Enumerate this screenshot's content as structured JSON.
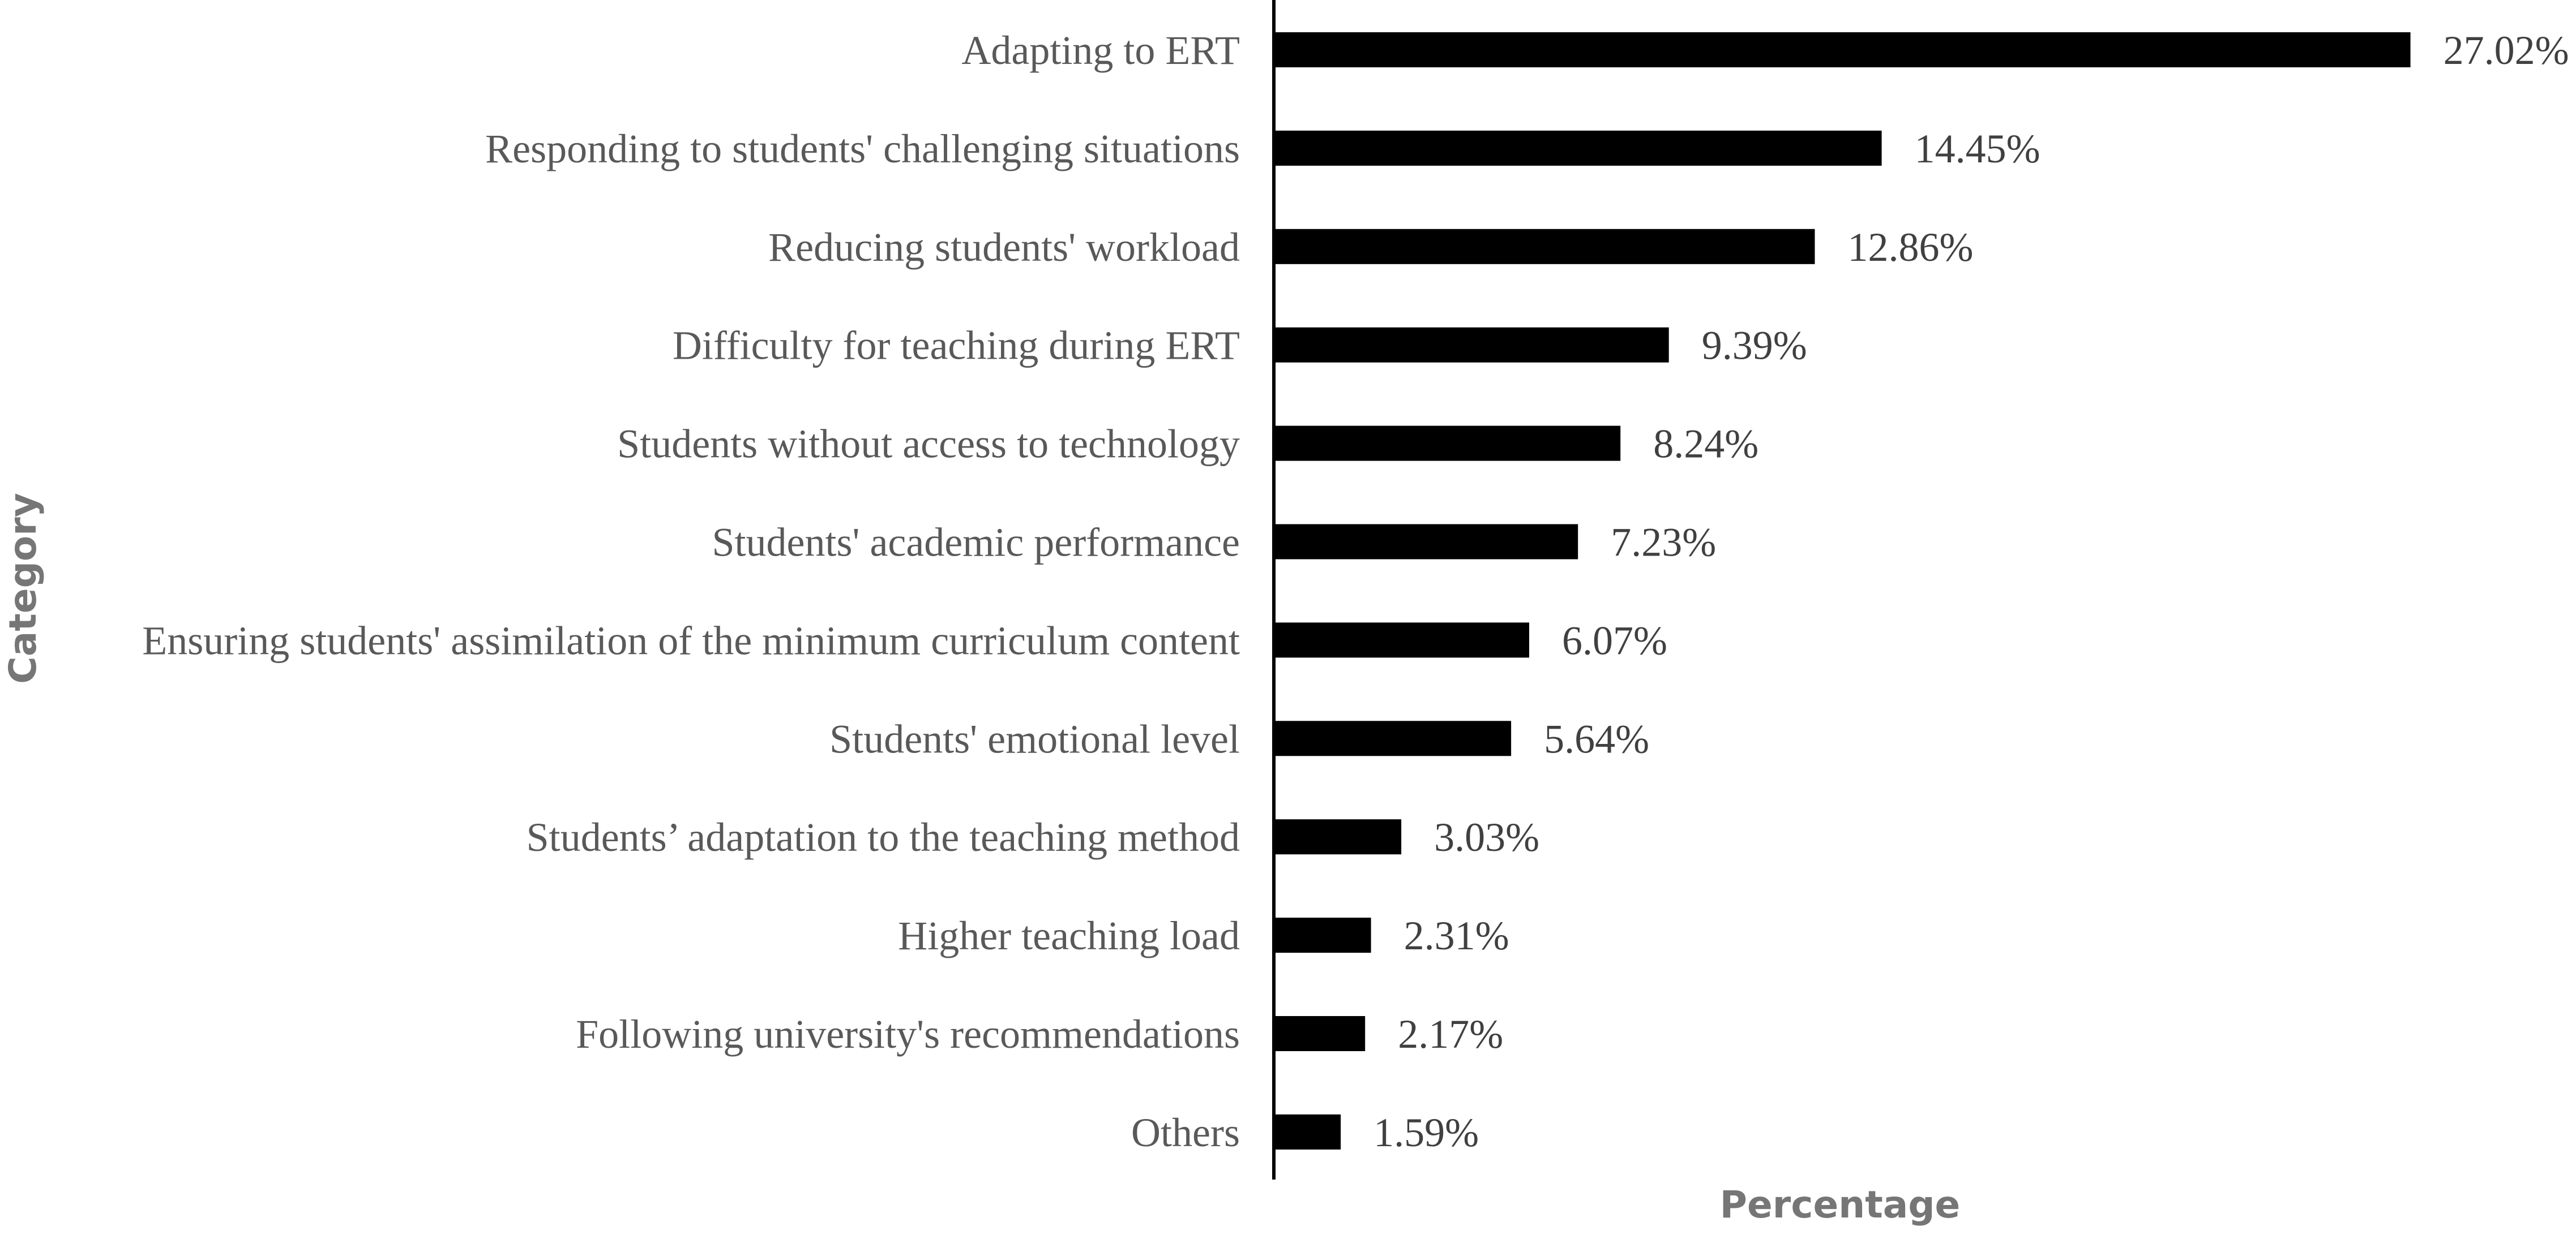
{
  "chart_data": {
    "type": "bar",
    "orientation": "horizontal",
    "xlabel": "Percentage",
    "ylabel": "Category",
    "categories": [
      "Adapting to ERT",
      "Responding to students' challenging situations",
      "Reducing students' workload",
      "Difficulty for teaching during ERT",
      "Students without access to technology",
      "Students' academic performance",
      "Ensuring students' assimilation of the minimum curriculum content",
      "Students' emotional level",
      "Students’ adaptation to the teaching method",
      "Higher teaching load",
      "Following university's recommendations",
      "Others"
    ],
    "values": [
      27.02,
      14.45,
      12.86,
      9.39,
      8.24,
      7.23,
      6.07,
      5.64,
      3.03,
      2.31,
      2.17,
      1.59
    ],
    "value_labels": [
      "27.02%",
      "14.45%",
      "12.86%",
      "9.39%",
      "8.24%",
      "7.23%",
      "6.07%",
      "5.64%",
      "3.03%",
      "2.31%",
      "2.17%",
      "1.59%"
    ],
    "grid": false,
    "legend": "none",
    "bar_color": "#000000"
  }
}
